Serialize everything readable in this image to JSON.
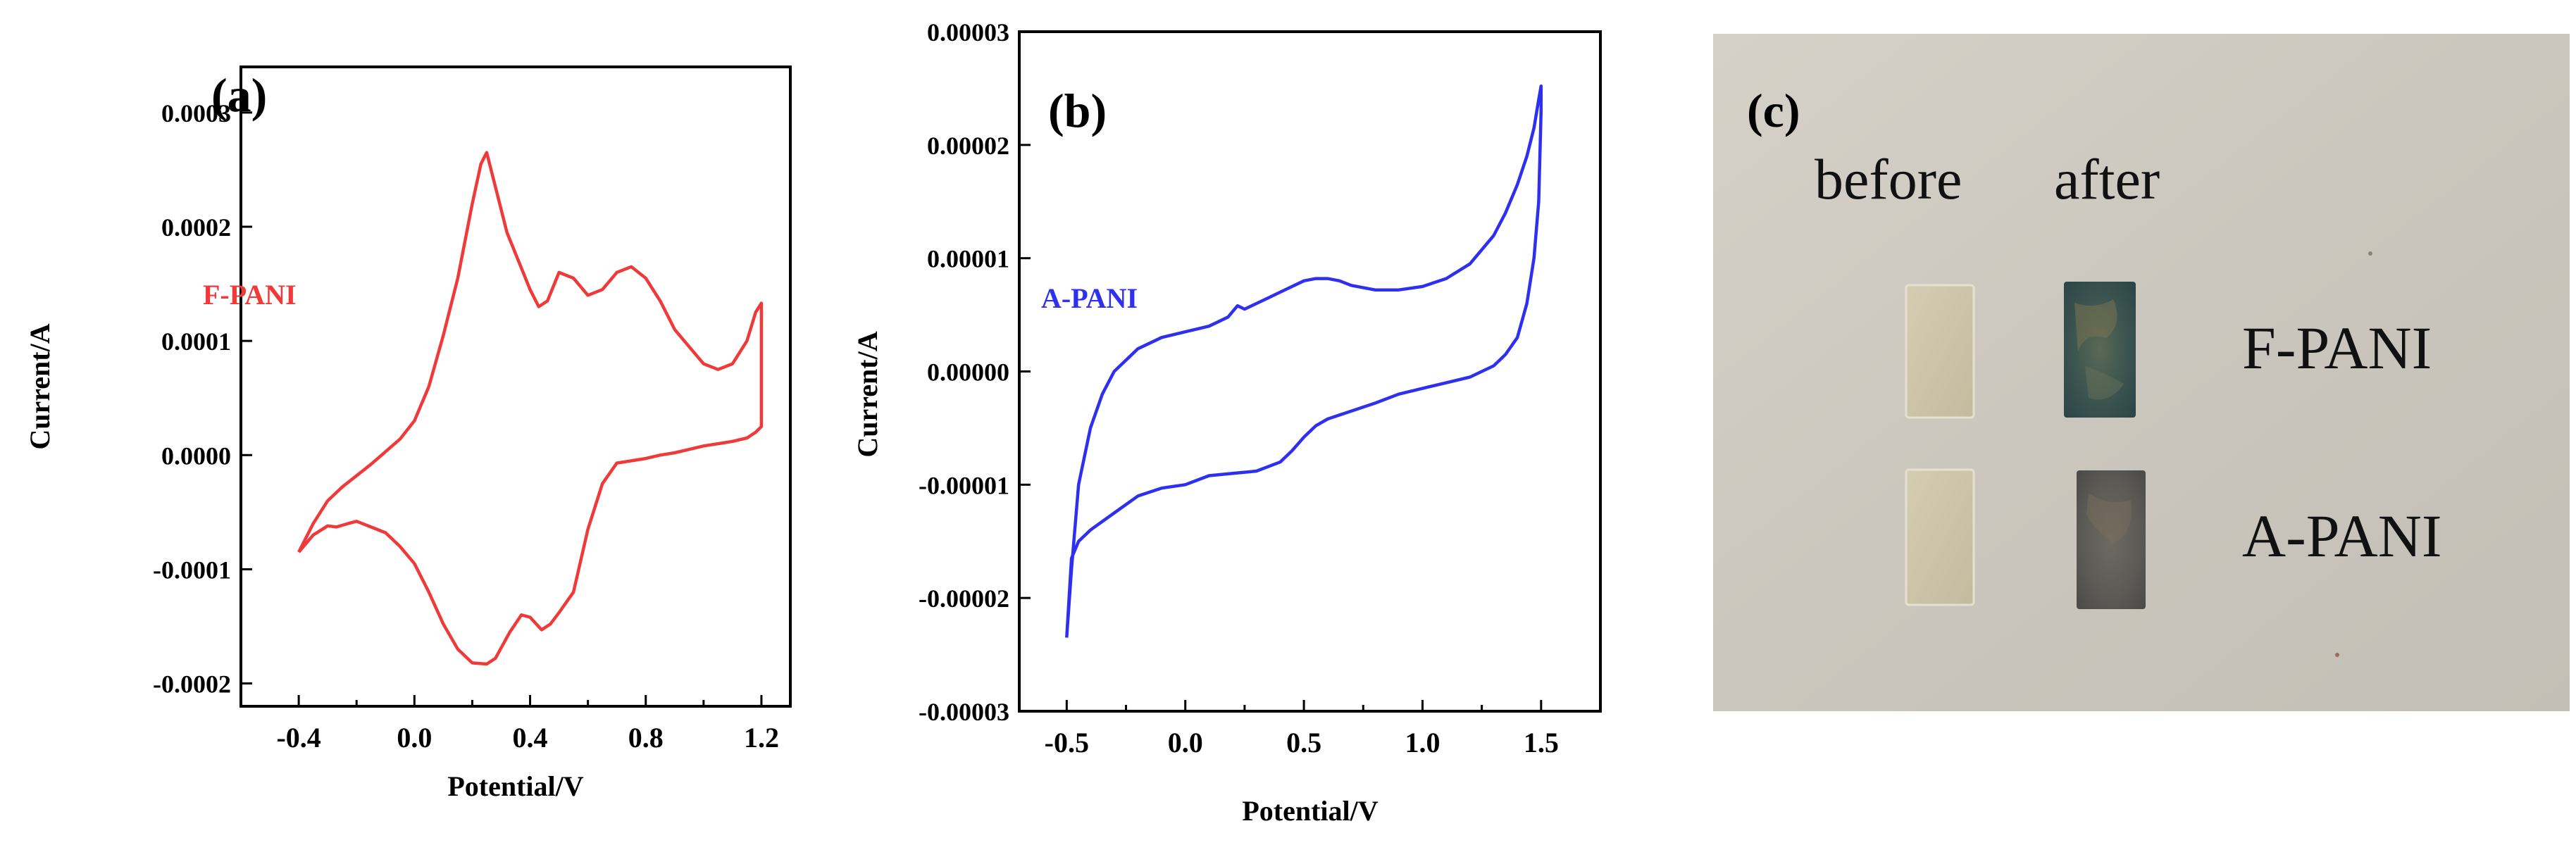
{
  "chart_data": [
    {
      "panel": "(a)",
      "type": "line",
      "title": "",
      "xlabel": "Potential/V",
      "ylabel": "Current/A",
      "xlim": [
        -0.6,
        1.3
      ],
      "ylim": [
        -0.00022,
        0.00034
      ],
      "xticks": [
        -0.4,
        0.0,
        0.4,
        0.8,
        1.2
      ],
      "xtick_labels": [
        "-0.4",
        "0.0",
        "0.4",
        "0.8",
        "1.2"
      ],
      "yticks": [
        -0.0002,
        -0.0001,
        0.0,
        0.0001,
        0.0002,
        0.0003
      ],
      "ytick_labels": [
        "-0.0002",
        "-0.0001",
        "0.0000",
        "0.0001",
        "0.0002",
        "0.0003"
      ],
      "series": [
        {
          "name": "F-PANI",
          "color": "#f03a3a",
          "x": [
            -0.4,
            -0.35,
            -0.3,
            -0.25,
            -0.2,
            -0.15,
            -0.1,
            -0.05,
            0.0,
            0.05,
            0.1,
            0.15,
            0.2,
            0.23,
            0.25,
            0.28,
            0.32,
            0.36,
            0.4,
            0.43,
            0.46,
            0.5,
            0.55,
            0.6,
            0.65,
            0.7,
            0.75,
            0.8,
            0.85,
            0.9,
            0.95,
            1.0,
            1.05,
            1.1,
            1.15,
            1.18,
            1.2,
            1.2,
            1.18,
            1.15,
            1.1,
            1.05,
            1.0,
            0.95,
            0.9,
            0.85,
            0.8,
            0.75,
            0.7,
            0.65,
            0.6,
            0.55,
            0.5,
            0.47,
            0.44,
            0.4,
            0.37,
            0.33,
            0.28,
            0.25,
            0.2,
            0.15,
            0.1,
            0.05,
            0.0,
            -0.05,
            -0.1,
            -0.15,
            -0.2,
            -0.23,
            -0.27,
            -0.3,
            -0.35,
            -0.4
          ],
          "y": [
            -8.5e-05,
            -6e-05,
            -4e-05,
            -2.8e-05,
            -1.8e-05,
            -8e-06,
            3e-06,
            1.4e-05,
            3e-05,
            6e-05,
            0.000105,
            0.000155,
            0.00022,
            0.000255,
            0.000265,
            0.000235,
            0.000195,
            0.00017,
            0.000145,
            0.00013,
            0.000135,
            0.00016,
            0.000155,
            0.00014,
            0.000145,
            0.00016,
            0.000165,
            0.000155,
            0.000135,
            0.00011,
            9.5e-05,
            8e-05,
            7.5e-05,
            8e-05,
            0.0001,
            0.000125,
            0.000133,
            2.5e-05,
            2e-05,
            1.5e-05,
            1.2e-05,
            1e-05,
            8e-06,
            5e-06,
            2e-06,
            0.0,
            -3e-06,
            -5e-06,
            -7e-06,
            -2.5e-05,
            -6.5e-05,
            -0.00012,
            -0.000138,
            -0.000148,
            -0.000153,
            -0.000142,
            -0.00014,
            -0.000155,
            -0.000178,
            -0.000183,
            -0.000182,
            -0.00017,
            -0.000148,
            -0.00012,
            -9.5e-05,
            -8e-05,
            -6.8e-05,
            -6.3e-05,
            -5.8e-05,
            -6e-05,
            -6.3e-05,
            -6.2e-05,
            -7e-05,
            -8.5e-05
          ]
        }
      ],
      "legend_label": "F-PANI",
      "legend_color": "#f03a3a",
      "legend_position": "middle-left"
    },
    {
      "panel": "(b)",
      "type": "line",
      "title": "",
      "xlabel": "Potential/V",
      "ylabel": "Current/A",
      "xlim": [
        -0.7,
        1.75
      ],
      "ylim": [
        -3e-05,
        3e-05
      ],
      "xticks": [
        -0.5,
        0.0,
        0.5,
        1.0,
        1.5
      ],
      "xtick_labels": [
        "-0.5",
        "0.0",
        "0.5",
        "1.0",
        "1.5"
      ],
      "yticks": [
        -3e-05,
        -2e-05,
        -1e-05,
        0.0,
        1e-05,
        2e-05,
        3e-05
      ],
      "ytick_labels": [
        "-0.00003",
        "-0.00002",
        "-0.00001",
        "0.00000",
        "0.00001",
        "0.00002",
        "0.00003"
      ],
      "series": [
        {
          "name": "A-PANI",
          "color": "#2f2ff0",
          "x": [
            -0.5,
            -0.48,
            -0.45,
            -0.4,
            -0.35,
            -0.3,
            -0.2,
            -0.1,
            0.0,
            0.1,
            0.18,
            0.22,
            0.25,
            0.3,
            0.35,
            0.4,
            0.45,
            0.5,
            0.55,
            0.6,
            0.65,
            0.7,
            0.8,
            0.9,
            1.0,
            1.1,
            1.2,
            1.3,
            1.35,
            1.4,
            1.44,
            1.47,
            1.49,
            1.5,
            1.5,
            1.49,
            1.47,
            1.44,
            1.4,
            1.35,
            1.3,
            1.2,
            1.1,
            1.0,
            0.9,
            0.8,
            0.7,
            0.6,
            0.55,
            0.5,
            0.45,
            0.4,
            0.3,
            0.2,
            0.1,
            0.05,
            0.0,
            -0.1,
            -0.2,
            -0.3,
            -0.4,
            -0.45,
            -0.48,
            -0.5
          ],
          "y": [
            -2.35e-05,
            -1.75e-05,
            -1e-05,
            -5e-06,
            -2e-06,
            0.0,
            2e-06,
            3e-06,
            3.5e-06,
            4e-06,
            4.8e-06,
            5.8e-06,
            5.5e-06,
            6e-06,
            6.5e-06,
            7e-06,
            7.5e-06,
            8e-06,
            8.2e-06,
            8.2e-06,
            8e-06,
            7.6e-06,
            7.2e-06,
            7.2e-06,
            7.5e-06,
            8.2e-06,
            9.5e-06,
            1.2e-05,
            1.4e-05,
            1.65e-05,
            1.9e-05,
            2.15e-05,
            2.4e-05,
            2.52e-05,
            2.3e-05,
            1.5e-05,
            1e-05,
            6e-06,
            3e-06,
            1.5e-06,
            5e-07,
            -5e-07,
            -1e-06,
            -1.5e-06,
            -2e-06,
            -2.8e-06,
            -3.5e-06,
            -4.2e-06,
            -4.8e-06,
            -5.8e-06,
            -7e-06,
            -8e-06,
            -8.8e-06,
            -9e-06,
            -9.2e-06,
            -9.6e-06,
            -1e-05,
            -1.03e-05,
            -1.1e-05,
            -1.25e-05,
            -1.4e-05,
            -1.5e-05,
            -1.65e-05,
            -2.35e-05
          ]
        }
      ],
      "legend_label": "A-PANI",
      "legend_color": "#2f2ff0",
      "legend_position": "top-left"
    }
  ],
  "photo": {
    "panel": "(c)",
    "header_before": "before",
    "header_after": "after",
    "row1_label": "F-PANI",
    "row2_label": "A-PANI"
  }
}
